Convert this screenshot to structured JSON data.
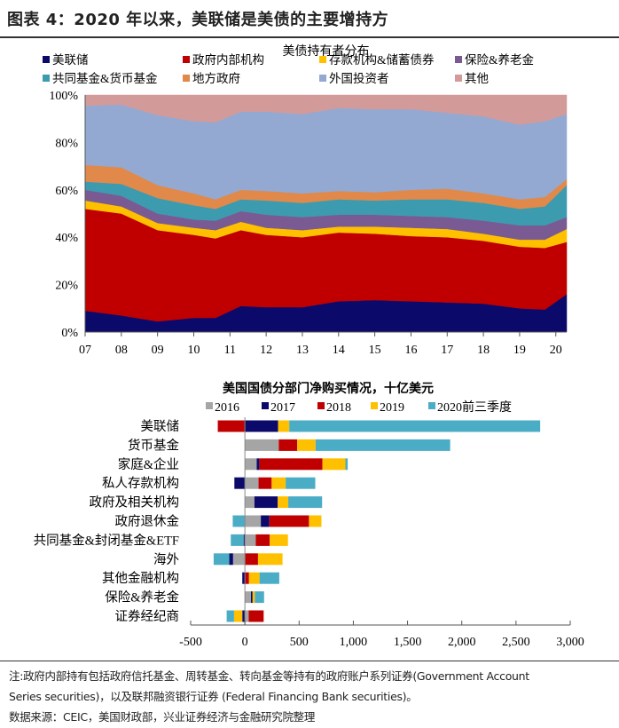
{
  "header": {
    "title": "图表 4：2020 年以来，美联储是美债的主要增持方"
  },
  "chart_data": [
    {
      "type": "area",
      "stacked": true,
      "title": "美债持有者分布",
      "x_tick_labels": [
        "07",
        "08",
        "09",
        "10",
        "11",
        "12",
        "13",
        "14",
        "15",
        "16",
        "17",
        "18",
        "19",
        "20"
      ],
      "y_tick_labels": [
        "0%",
        "20%",
        "40%",
        "60%",
        "80%",
        "100%"
      ],
      "ylim": [
        0,
        100
      ],
      "xlim": [
        2007,
        2020.3
      ],
      "legend_position": "top",
      "grid": false,
      "x": [
        2007,
        2008,
        2009,
        2010,
        2010.6,
        2011.3,
        2012,
        2013,
        2014,
        2015,
        2016,
        2017,
        2018,
        2019,
        2019.7,
        2020.2
      ],
      "series": [
        {
          "name": "美联储",
          "color": "#0b0a6b",
          "values": [
            9,
            7,
            4.5,
            6,
            6,
            11,
            10.5,
            10.5,
            13,
            13.5,
            13,
            12.5,
            12,
            10,
            9.5,
            16
          ]
        },
        {
          "name": "政府内部机构",
          "color": "#c00000",
          "values": [
            43,
            43,
            38.5,
            35,
            33.5,
            32,
            30.5,
            29.5,
            29,
            28,
            27.5,
            27.5,
            26.5,
            26,
            26,
            22
          ]
        },
        {
          "name": "存款机构&储蓄债券",
          "color": "#ffc000",
          "values": [
            3.5,
            3,
            3,
            3,
            3.5,
            3.5,
            3,
            3,
            2.5,
            3,
            3.5,
            3.5,
            3,
            3,
            3.5,
            5.5
          ]
        },
        {
          "name": "保险&养老金",
          "color": "#7a5a92",
          "values": [
            4.5,
            4.5,
            4,
            3.5,
            4,
            4.5,
            5.5,
            5.5,
            5,
            5,
            5,
            5,
            5.5,
            6,
            6,
            5
          ]
        },
        {
          "name": "共同基金&货币基金",
          "color": "#3d9bb0",
          "values": [
            3.5,
            5,
            6.5,
            6,
            5,
            5,
            6,
            6,
            6.5,
            6,
            7,
            7.5,
            7.5,
            7,
            8,
            13.5
          ]
        },
        {
          "name": "地方政府",
          "color": "#e0894a",
          "values": [
            7,
            7,
            5.5,
            5,
            4,
            4,
            4,
            4,
            3.5,
            3.5,
            4,
            4.5,
            4,
            4,
            4,
            2.5
          ]
        },
        {
          "name": "外国投资者",
          "color": "#93a9d2",
          "values": [
            25,
            26.5,
            29.5,
            30.5,
            32.5,
            33,
            33.5,
            33.5,
            35,
            35,
            34,
            32,
            32.5,
            31.5,
            32,
            27.5
          ]
        },
        {
          "name": "其他",
          "color": "#d39a9a",
          "values": [
            4.5,
            4,
            8.5,
            11,
            11.5,
            7,
            7,
            8,
            5.5,
            6,
            6,
            7.5,
            9,
            12.5,
            11,
            8
          ]
        }
      ]
    },
    {
      "type": "bar",
      "orientation": "horizontal",
      "stacked": true,
      "title": "美国国债分部门净购买情况，十亿美元",
      "categories": [
        "美联储",
        "货币基金",
        "家庭&企业",
        "私人存款机构",
        "政府及相关机构",
        "政府退休金",
        "共同基金&封闭基金&ETF",
        "海外",
        "其他金融机构",
        "保险&养老金",
        "证券经纪商"
      ],
      "xlim": [
        -500,
        3000
      ],
      "x_tick_labels": [
        "-500",
        "0",
        "500",
        "1,000",
        "1,500",
        "2,000",
        "2,500",
        "3,000"
      ],
      "legend_position": "top",
      "grid": false,
      "series": [
        {
          "name": "2016",
          "color": "#a5a5a5",
          "values": [
            0,
            312,
            109,
            126,
            88,
            147,
            100,
            -109,
            0,
            56,
            35
          ]
        },
        {
          "name": "2017",
          "color": "#0b0a6b",
          "values": [
            306,
            0,
            24,
            -97,
            215,
            79,
            -12,
            -35,
            -24,
            15,
            -24
          ]
        },
        {
          "name": "2018",
          "color": "#c00000",
          "values": [
            -250,
            170,
            582,
            121,
            0,
            365,
            129,
            121,
            38,
            0,
            138
          ]
        },
        {
          "name": "2019",
          "color": "#ffc000",
          "values": [
            103,
            170,
            212,
            129,
            97,
            115,
            168,
            226,
            97,
            21,
            -76
          ]
        },
        {
          "name": "2020前三季度",
          "color": "#4bacc6",
          "values": [
            2314,
            1241,
            21,
            273,
            312,
            -112,
            -118,
            -144,
            182,
            85,
            -68
          ]
        }
      ]
    }
  ],
  "footer": {
    "note_line1": "注:政府内部持有包括政府信托基金、周转基金、转向基金等持有的政府账户系列证券(Government Account",
    "note_line2": "Series securities)，以及联邦融资银行证券 (Federal Financing Bank securities)。",
    "source": "数据来源：CEIC，美国财政部，兴业证券经济与金融研究院整理"
  }
}
